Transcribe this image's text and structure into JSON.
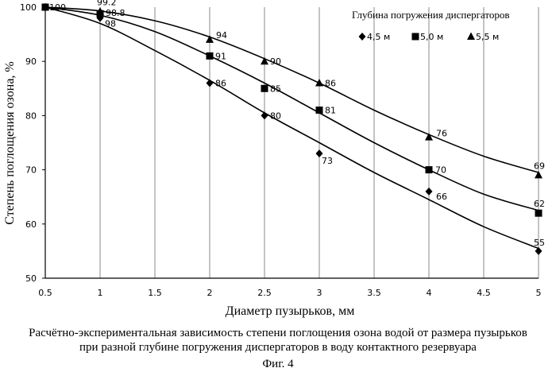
{
  "chart_data": {
    "type": "scatter",
    "xlabel": "Диаметр пузырьков, мм",
    "ylabel": "Степень поглощения озона, %",
    "xlim": [
      0.5,
      5
    ],
    "ylim": [
      50,
      100
    ],
    "x_ticks": [
      "0.5",
      "1",
      "1.5",
      "2",
      "2.5",
      "3",
      "3.5",
      "4",
      "4.5",
      "5"
    ],
    "y_ticks": [
      "50",
      "60",
      "70",
      "80",
      "90",
      "100"
    ],
    "x_tick_values": [
      0.5,
      1,
      1.5,
      2,
      2.5,
      3,
      3.5,
      4,
      4.5,
      5
    ],
    "y_tick_values": [
      50,
      60,
      70,
      80,
      90,
      100
    ],
    "grid": "vertical",
    "legend_title": "Глубина погружения диспергаторов",
    "legend_position": "top-right",
    "series": [
      {
        "name": "4,5 м",
        "marker": "diamond",
        "x": [
          0.5,
          1,
          2,
          2.5,
          3,
          4,
          5
        ],
        "y": [
          100,
          98,
          86,
          80,
          73,
          66,
          55
        ],
        "labels": [
          "100",
          "98",
          "86",
          "80",
          "73",
          "66",
          "55"
        ]
      },
      {
        "name": "5,0 м",
        "marker": "square",
        "x": [
          0.5,
          1,
          2,
          2.5,
          3,
          4,
          5
        ],
        "y": [
          100,
          98.8,
          91,
          85,
          81,
          70,
          62
        ],
        "labels": [
          "",
          "98.8",
          "91",
          "85",
          "81",
          "70",
          "62"
        ]
      },
      {
        "name": "5,5 м",
        "marker": "triangle",
        "x": [
          0.5,
          1,
          2,
          2.5,
          3,
          4,
          5
        ],
        "y": [
          100,
          99.2,
          94,
          90,
          86,
          76,
          69
        ],
        "labels": [
          "",
          "99.2",
          "94",
          "90",
          "86",
          "76",
          "69"
        ]
      }
    ],
    "trend_lines": [
      {
        "series": "4,5 м",
        "points": [
          [
            0.5,
            100
          ],
          [
            1,
            97
          ],
          [
            1.5,
            92
          ],
          [
            2,
            86.5
          ],
          [
            2.5,
            80.5
          ],
          [
            3,
            75
          ],
          [
            3.5,
            69.5
          ],
          [
            4,
            64.5
          ],
          [
            4.5,
            59.5
          ],
          [
            5,
            55.5
          ]
        ]
      },
      {
        "series": "5,0 м",
        "points": [
          [
            0.5,
            100
          ],
          [
            1,
            98.5
          ],
          [
            1.5,
            95.5
          ],
          [
            2,
            91
          ],
          [
            2.5,
            86
          ],
          [
            3,
            80.5
          ],
          [
            3.5,
            75
          ],
          [
            4,
            70
          ],
          [
            4.5,
            65.5
          ],
          [
            5,
            62.5
          ]
        ]
      },
      {
        "series": "5,5 м",
        "points": [
          [
            0.5,
            100
          ],
          [
            1,
            99.3
          ],
          [
            1.5,
            97.5
          ],
          [
            2,
            94.5
          ],
          [
            2.5,
            90.5
          ],
          [
            3,
            86
          ],
          [
            3.5,
            81
          ],
          [
            4,
            76.5
          ],
          [
            4.5,
            72.5
          ],
          [
            5,
            69.5
          ]
        ]
      }
    ]
  },
  "caption": {
    "line1": "Расчётно-экспериментальная зависимость степени поглощения озона водой от размера пузырьков",
    "line2": "при разной глубине погружения диспергаторов в воду контактного резервуара",
    "figure": "Фиг. 4"
  }
}
